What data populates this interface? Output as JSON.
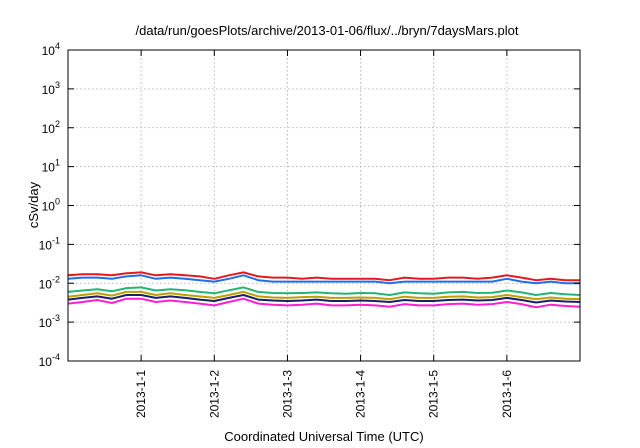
{
  "chart_data": {
    "type": "line",
    "title": "/data/run/goesPlots/archive/2013-01-06/flux/../bryn/7daysMars.plot",
    "xlabel": "Coordinated Universal Time (UTC)",
    "ylabel": "cSv/day",
    "yscale": "log",
    "ylim": [
      0.0001,
      10000
    ],
    "xlim": [
      -1,
      6
    ],
    "grid": true,
    "legend": "none",
    "y_ticks": [
      {
        "base": "10",
        "exp": "-4",
        "value": 0.0001
      },
      {
        "base": "10",
        "exp": "-3",
        "value": 0.001
      },
      {
        "base": "10",
        "exp": "-2",
        "value": 0.01
      },
      {
        "base": "10",
        "exp": "-1",
        "value": 0.1
      },
      {
        "base": "10",
        "exp": "0",
        "value": 1
      },
      {
        "base": "10",
        "exp": "1",
        "value": 10
      },
      {
        "base": "10",
        "exp": "2",
        "value": 100
      },
      {
        "base": "10",
        "exp": "3",
        "value": 1000
      },
      {
        "base": "10",
        "exp": "4",
        "value": 10000
      }
    ],
    "x_ticks": [
      {
        "label": "2013-1-1",
        "value": 0
      },
      {
        "label": "2013-1-2",
        "value": 1
      },
      {
        "label": "2013-1-3",
        "value": 2
      },
      {
        "label": "2013-1-4",
        "value": 3
      },
      {
        "label": "2013-1-5",
        "value": 4
      },
      {
        "label": "2013-1-6",
        "value": 5
      }
    ],
    "x": [
      -1.0,
      -0.8,
      -0.6,
      -0.4,
      -0.2,
      0.0,
      0.2,
      0.4,
      0.6,
      0.8,
      1.0,
      1.2,
      1.4,
      1.6,
      1.8,
      2.0,
      2.2,
      2.4,
      2.6,
      2.8,
      3.0,
      3.2,
      3.4,
      3.6,
      3.8,
      4.0,
      4.2,
      4.4,
      4.6,
      4.8,
      5.0,
      5.2,
      5.4,
      5.6,
      5.8,
      6.0
    ],
    "series": [
      {
        "color": "#e41a1c",
        "values": [
          0.016,
          0.017,
          0.017,
          0.016,
          0.018,
          0.019,
          0.016,
          0.017,
          0.016,
          0.015,
          0.013,
          0.016,
          0.019,
          0.015,
          0.014,
          0.014,
          0.013,
          0.014,
          0.013,
          0.013,
          0.013,
          0.013,
          0.012,
          0.014,
          0.013,
          0.013,
          0.014,
          0.014,
          0.013,
          0.014,
          0.016,
          0.014,
          0.012,
          0.013,
          0.012,
          0.012
        ]
      },
      {
        "color": "#1f6fe5",
        "values": [
          0.013,
          0.014,
          0.014,
          0.013,
          0.015,
          0.016,
          0.013,
          0.014,
          0.013,
          0.012,
          0.011,
          0.013,
          0.016,
          0.012,
          0.011,
          0.011,
          0.011,
          0.011,
          0.011,
          0.011,
          0.011,
          0.011,
          0.01,
          0.011,
          0.011,
          0.011,
          0.011,
          0.011,
          0.011,
          0.011,
          0.013,
          0.011,
          0.01,
          0.011,
          0.01,
          0.01
        ]
      },
      {
        "color": "#22b573",
        "values": [
          0.006,
          0.0065,
          0.007,
          0.0062,
          0.0075,
          0.0078,
          0.0065,
          0.007,
          0.0066,
          0.006,
          0.0055,
          0.0066,
          0.0078,
          0.006,
          0.0056,
          0.0055,
          0.0056,
          0.0058,
          0.0055,
          0.0054,
          0.0056,
          0.0055,
          0.005,
          0.0058,
          0.0055,
          0.0054,
          0.0058,
          0.006,
          0.0056,
          0.0057,
          0.0065,
          0.0058,
          0.005,
          0.0056,
          0.0052,
          0.005
        ]
      },
      {
        "color": "#bda000",
        "values": [
          0.0045,
          0.005,
          0.0055,
          0.0048,
          0.006,
          0.006,
          0.005,
          0.0055,
          0.005,
          0.0046,
          0.0042,
          0.005,
          0.006,
          0.0046,
          0.0043,
          0.0042,
          0.0044,
          0.0045,
          0.0042,
          0.0042,
          0.0043,
          0.0042,
          0.0039,
          0.0045,
          0.0042,
          0.0042,
          0.0045,
          0.0046,
          0.0043,
          0.0044,
          0.005,
          0.0044,
          0.0039,
          0.0043,
          0.004,
          0.0039
        ]
      },
      {
        "color": "#1b1f6b",
        "values": [
          0.0038,
          0.0042,
          0.0046,
          0.004,
          0.005,
          0.005,
          0.0042,
          0.0046,
          0.0042,
          0.0038,
          0.0035,
          0.0042,
          0.005,
          0.0038,
          0.0036,
          0.0035,
          0.0036,
          0.0038,
          0.0035,
          0.0035,
          0.0036,
          0.0035,
          0.0033,
          0.0037,
          0.0035,
          0.0035,
          0.0037,
          0.0038,
          0.0036,
          0.0037,
          0.0042,
          0.0037,
          0.0032,
          0.0036,
          0.0034,
          0.0033
        ]
      },
      {
        "color": "#ff1fd2",
        "values": [
          0.003,
          0.0033,
          0.0037,
          0.0031,
          0.004,
          0.004,
          0.0033,
          0.0036,
          0.0033,
          0.003,
          0.0027,
          0.0033,
          0.004,
          0.003,
          0.0028,
          0.0027,
          0.0028,
          0.003,
          0.0027,
          0.0027,
          0.0028,
          0.0027,
          0.0025,
          0.0029,
          0.0027,
          0.0027,
          0.0029,
          0.003,
          0.0028,
          0.0029,
          0.0033,
          0.0029,
          0.0024,
          0.0028,
          0.0026,
          0.0025
        ]
      }
    ]
  }
}
